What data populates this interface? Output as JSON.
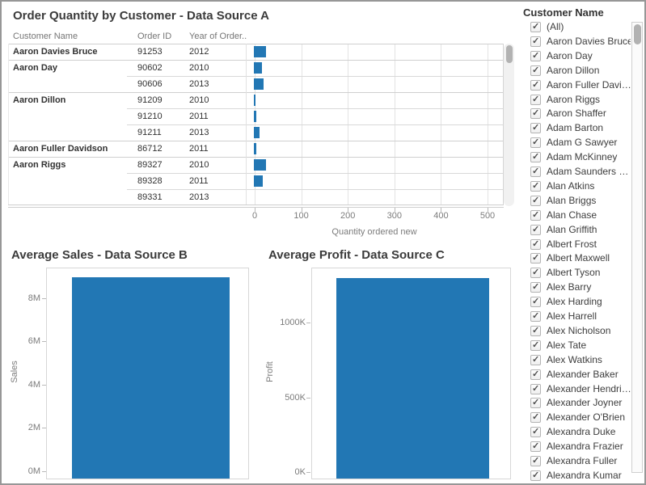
{
  "colors": {
    "bar": "#2277b4",
    "title_text": "#3b3b3b",
    "axis_text": "#7b7b7b",
    "table_text": "#323232",
    "header_text": "#757575"
  },
  "chart_data": [
    {
      "type": "bar",
      "orientation": "horizontal",
      "title": "Order Quantity by Customer - Data Source A",
      "columns": [
        "Customer Name",
        "Order ID",
        "Year of Order.."
      ],
      "xlabel": "Quantity ordered new",
      "xticks": [
        0,
        100,
        200,
        300,
        400,
        500
      ],
      "xlim": [
        0,
        550
      ],
      "grid": true,
      "rows": [
        {
          "customer": "Aaron Davies Bruce",
          "order_id": "91253",
          "year": "2012",
          "quantity": 26,
          "new_group": true
        },
        {
          "customer": "Aaron Day",
          "order_id": "90602",
          "year": "2010",
          "quantity": 17,
          "new_group": true
        },
        {
          "customer": "",
          "order_id": "90606",
          "year": "2013",
          "quantity": 21,
          "new_group": false
        },
        {
          "customer": "Aaron Dillon",
          "order_id": "91209",
          "year": "2010",
          "quantity": 2,
          "new_group": true
        },
        {
          "customer": "",
          "order_id": "91210",
          "year": "2011",
          "quantity": 5,
          "new_group": false
        },
        {
          "customer": "",
          "order_id": "91211",
          "year": "2013",
          "quantity": 12,
          "new_group": false
        },
        {
          "customer": "Aaron Fuller Davidson",
          "order_id": "86712",
          "year": "2011",
          "quantity": 5,
          "new_group": true
        },
        {
          "customer": "Aaron Riggs",
          "order_id": "89327",
          "year": "2010",
          "quantity": 26,
          "new_group": true
        },
        {
          "customer": "",
          "order_id": "89328",
          "year": "2011",
          "quantity": 19,
          "new_group": false
        },
        {
          "customer": "",
          "order_id": "89331",
          "year": "2013",
          "quantity": 0,
          "new_group": false
        }
      ]
    },
    {
      "type": "bar",
      "title": "Average Sales - Data Source B",
      "ylabel": "Sales",
      "yticks": [
        {
          "value": 0,
          "label": "0M"
        },
        {
          "value": 2,
          "label": "2M"
        },
        {
          "value": 4,
          "label": "4M"
        },
        {
          "value": 6,
          "label": "6M"
        },
        {
          "value": 8,
          "label": "8M"
        }
      ],
      "ylim": [
        0,
        9.4
      ],
      "unit": "M",
      "values": [
        8.95
      ]
    },
    {
      "type": "bar",
      "title": "Average Profit - Data Source C",
      "ylabel": "Profit",
      "yticks": [
        {
          "value": 0,
          "label": "0K"
        },
        {
          "value": 500,
          "label": "500K"
        },
        {
          "value": 1000,
          "label": "1000K"
        }
      ],
      "ylim": [
        0,
        1365
      ],
      "unit": "K",
      "values": [
        1300
      ]
    }
  ],
  "filter": {
    "title": "Customer Name",
    "check_glyph": "✓",
    "all_checked": true,
    "items": [
      "(All)",
      "Aaron Davies Bruce",
      "Aaron Day",
      "Aaron Dillon",
      "Aaron Fuller Davi…",
      "Aaron Riggs",
      "Aaron Shaffer",
      "Adam Barton",
      "Adam G Sawyer",
      "Adam McKinney",
      "Adam Saunders …",
      "Alan Atkins",
      "Alan Briggs",
      "Alan Chase",
      "Alan Griffith",
      "Albert Frost",
      "Albert Maxwell",
      "Albert Tyson",
      "Alex Barry",
      "Alex Harding",
      "Alex Harrell",
      "Alex Nicholson",
      "Alex Tate",
      "Alex Watkins",
      "Alexander Baker",
      "Alexander Hendri…",
      "Alexander Joyner",
      "Alexander O'Brien",
      "Alexandra Duke",
      "Alexandra Frazier",
      "Alexandra Fuller",
      "Alexandra Kumar"
    ]
  }
}
